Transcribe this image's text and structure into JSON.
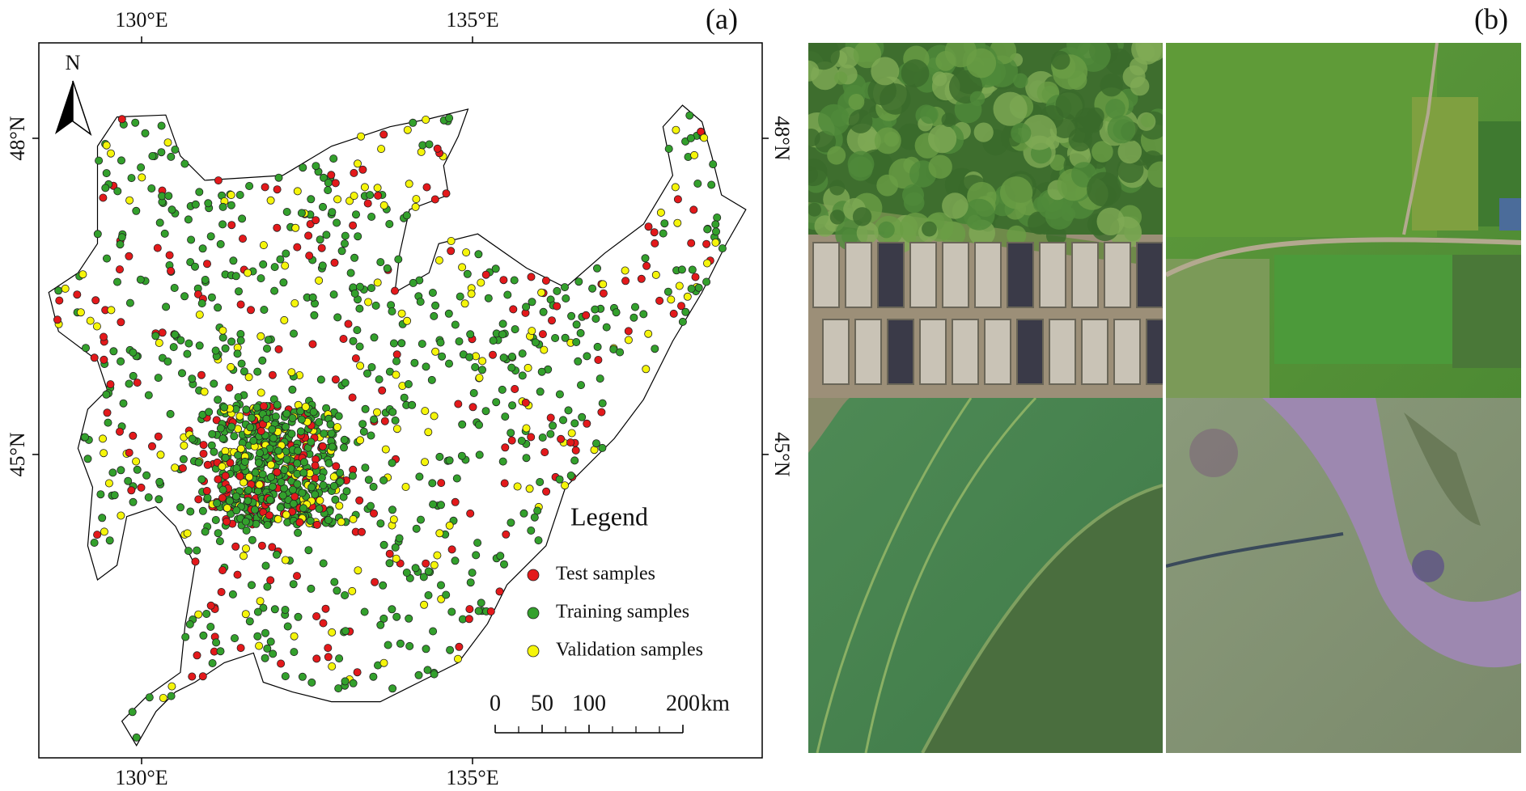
{
  "panels": {
    "a": {
      "label": "(a)",
      "lon_ticks": [
        {
          "value": 130,
          "label": "130°E"
        },
        {
          "value": 135,
          "label": "135°E"
        }
      ],
      "lat_ticks": [
        {
          "value": 48,
          "label": "48°N"
        },
        {
          "value": 45,
          "label": "45°N"
        }
      ],
      "north": "N",
      "legend": {
        "title": "Legend",
        "items": [
          {
            "name": "Test samples",
            "color": "#e3191b"
          },
          {
            "name": "Training samples",
            "color": "#33a02c"
          },
          {
            "name": "Validation samples",
            "color": "#f5f50a"
          }
        ]
      },
      "scale_bar": {
        "ticks": [
          0,
          50,
          100,
          200
        ],
        "unit": "km"
      }
    },
    "b": {
      "label": "(b)"
    }
  }
}
